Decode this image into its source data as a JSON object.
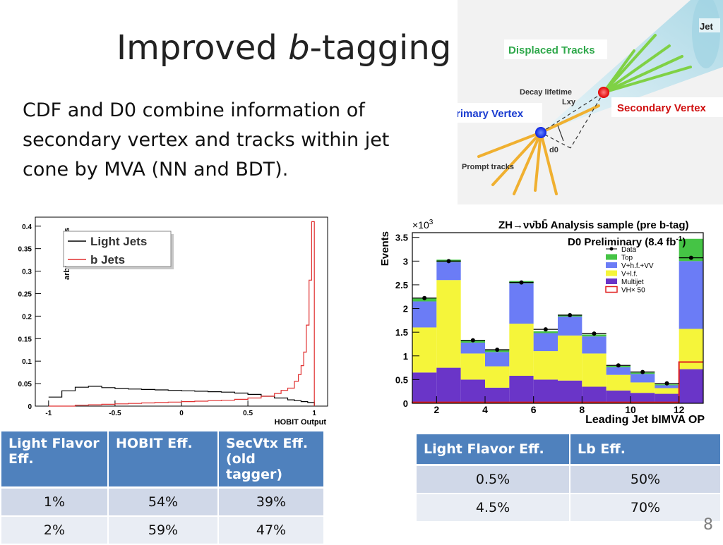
{
  "slide": {
    "title_main": "Improved ",
    "title_italic": "b",
    "title_rest": "-tagging",
    "body_text": "CDF and D0 combine information of secondary vertex and tracks within jet cone by MVA (NN and BDT).",
    "page_number": "8"
  },
  "jet_diagram": {
    "jet_label": "Jet",
    "displaced_tracks_label": "Displaced Tracks",
    "decay_lifetime_label": "Decay lifetime",
    "lxy_label": "Lxy",
    "secondary_vertex_label": "Secondary Vertex",
    "primary_vertex_label": "Primary Vertex",
    "d0_label": "d0",
    "prompt_tracks_label": "Prompt tracks",
    "colors": {
      "secondary_vertex": "#ff2222",
      "primary_vertex": "#1a3cff",
      "displaced_tracks": "#7fd145",
      "prompt_tracks": "#f0b030",
      "label_green": "#2ea84a",
      "label_blue": "#1a3cd0",
      "label_red": "#d01010"
    }
  },
  "chart_data": [
    {
      "type": "line",
      "xlabel": "HOBIT Output",
      "ylabel": "arbitrary units",
      "xlim": [
        -1.1,
        1.1
      ],
      "ylim": [
        0,
        0.42
      ],
      "x_ticks": [
        "-1",
        "-0.5",
        "0",
        "0.5",
        "1"
      ],
      "y_ticks": [
        "0",
        "0.05",
        "0.1",
        "0.15",
        "0.2",
        "0.25",
        "0.3",
        "0.35",
        "0.4"
      ],
      "series": [
        {
          "name": "Light Jets",
          "color": "#000000",
          "x": [
            -1.0,
            -0.9,
            -0.8,
            -0.7,
            -0.6,
            -0.5,
            -0.4,
            -0.3,
            -0.2,
            -0.1,
            0.0,
            0.1,
            0.2,
            0.3,
            0.4,
            0.5,
            0.6,
            0.7,
            0.8,
            0.85,
            0.9,
            0.95,
            1.0
          ],
          "y": [
            0.02,
            0.034,
            0.042,
            0.044,
            0.041,
            0.039,
            0.038,
            0.037,
            0.036,
            0.035,
            0.034,
            0.033,
            0.032,
            0.031,
            0.029,
            0.026,
            0.022,
            0.018,
            0.014,
            0.012,
            0.01,
            0.008,
            0.0
          ]
        },
        {
          "name": "b Jets",
          "color": "#e03030",
          "x": [
            -1.0,
            -0.9,
            -0.8,
            -0.7,
            -0.6,
            -0.5,
            -0.4,
            -0.3,
            -0.2,
            -0.1,
            0.0,
            0.1,
            0.2,
            0.3,
            0.4,
            0.5,
            0.6,
            0.7,
            0.75,
            0.8,
            0.85,
            0.88,
            0.9,
            0.92,
            0.94,
            0.96,
            0.98,
            1.0
          ],
          "y": [
            0.0,
            0.0,
            0.002,
            0.003,
            0.004,
            0.005,
            0.006,
            0.007,
            0.008,
            0.009,
            0.01,
            0.011,
            0.012,
            0.013,
            0.015,
            0.018,
            0.022,
            0.028,
            0.035,
            0.04,
            0.055,
            0.07,
            0.09,
            0.12,
            0.18,
            0.28,
            0.41,
            0.0
          ]
        }
      ]
    },
    {
      "type": "bar",
      "title": "ZH→νν̄bb̄ Analysis sample (pre b-tag)",
      "subtitle": "D0 Preliminary (8.4 fb",
      "subtitle_exp": "-1",
      "subtitle_end": ")",
      "xlabel": "Leading Jet bIMVA OP",
      "ylabel": "Events",
      "y_multiplier": "×10",
      "y_multiplier_exp": "3",
      "xlim": [
        1,
        13
      ],
      "ylim": [
        0,
        3.6
      ],
      "x_ticks": [
        "2",
        "4",
        "6",
        "8",
        "10",
        "12"
      ],
      "y_ticks": [
        "0",
        "0.5",
        "1",
        "1.5",
        "2",
        "2.5",
        "3",
        "3.5"
      ],
      "bins": [
        1,
        2,
        3,
        4,
        5,
        6,
        7,
        8,
        9,
        10,
        11,
        12
      ],
      "series": [
        {
          "name": "Multijet",
          "color": "#6a35c8",
          "values": [
            0.65,
            0.75,
            0.5,
            0.33,
            0.58,
            0.5,
            0.48,
            0.35,
            0.27,
            0.22,
            0.2,
            0.72
          ]
        },
        {
          "name": "V+l.f.",
          "color": "#f5f53a",
          "values": [
            0.95,
            1.85,
            0.55,
            0.45,
            1.1,
            0.6,
            0.95,
            0.7,
            0.33,
            0.22,
            0.12,
            0.85
          ]
        },
        {
          "name": "V+h.f.+VV",
          "color": "#6b7cf6",
          "values": [
            0.55,
            0.38,
            0.23,
            0.3,
            0.85,
            0.38,
            0.4,
            0.36,
            0.16,
            0.18,
            0.06,
            1.43
          ]
        },
        {
          "name": "Top",
          "color": "#45c445",
          "values": [
            0.07,
            0.05,
            0.04,
            0.04,
            0.05,
            0.04,
            0.04,
            0.04,
            0.03,
            0.03,
            0.02,
            0.47
          ]
        }
      ],
      "data_points": {
        "name": "Data",
        "values": [
          2.22,
          3.0,
          1.33,
          1.13,
          2.55,
          1.56,
          1.86,
          1.47,
          0.8,
          0.66,
          0.42,
          3.07
        ]
      },
      "signal": {
        "name": "VH× 50",
        "color": "#e02020",
        "values": [
          0.02,
          0.02,
          0.02,
          0.02,
          0.02,
          0.02,
          0.02,
          0.02,
          0.02,
          0.02,
          0.02,
          0.87
        ]
      },
      "legend_order": [
        "Data",
        "Top",
        "V+h.f.+VV",
        "V+l.f.",
        "Multijet",
        "VH× 50"
      ]
    }
  ],
  "tables": {
    "left": {
      "headers": [
        "Light Flavor Eff.",
        "HOBIT Eff.",
        "SecVtx Eff. (old tagger)"
      ],
      "rows": [
        [
          "1%",
          "54%",
          "39%"
        ],
        [
          "2%",
          "59%",
          "47%"
        ]
      ]
    },
    "right": {
      "headers": [
        "Light Flavor Eff.",
        "Lb Eff."
      ],
      "rows": [
        [
          "0.5%",
          "50%"
        ],
        [
          "4.5%",
          "70%"
        ]
      ]
    }
  }
}
